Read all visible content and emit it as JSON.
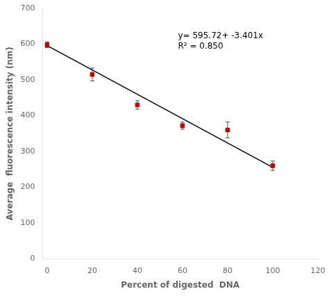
{
  "chart_data": {
    "type": "scatter",
    "xlabel": "Percent of digested  DNA",
    "ylabel": "Average  fluorescence intensity (nm)",
    "xlim": [
      -2,
      120
    ],
    "ylim": [
      0,
      700
    ],
    "xticks": [
      0,
      20,
      40,
      60,
      80,
      100,
      120
    ],
    "yticks": [
      0,
      100,
      200,
      300,
      400,
      500,
      600,
      700
    ],
    "grid": false,
    "series": [
      {
        "type": "line",
        "x": [
          0,
          100
        ],
        "values": [
          595.72,
          255.62
        ],
        "color": "#000000"
      },
      {
        "type": "scatter",
        "x": [
          0,
          20,
          40,
          60,
          80,
          100
        ],
        "values": [
          598,
          515,
          430,
          372,
          360,
          260
        ],
        "yerr": [
          8,
          18,
          12,
          10,
          22,
          13
        ],
        "color": "#cc0000",
        "marker": "square"
      }
    ],
    "annotations": [
      {
        "text": "y= 595.72+ -3.401x\nR² = 0.850",
        "x": 58,
        "y": 635
      }
    ]
  }
}
